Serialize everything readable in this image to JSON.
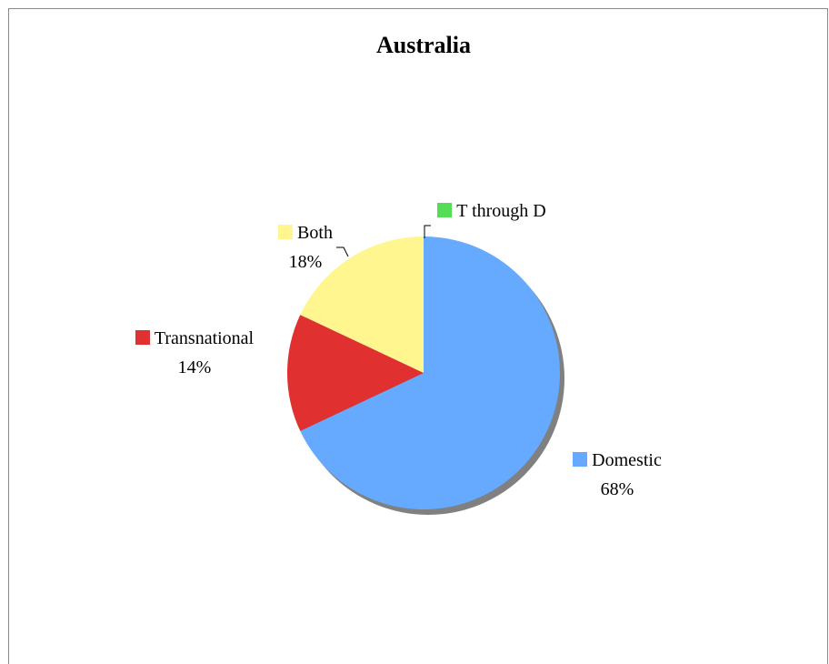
{
  "chart_data": {
    "type": "pie",
    "title": "Australia",
    "categories": [
      "Domestic",
      "Transnational",
      "Both",
      "T through D"
    ],
    "values": [
      68,
      14,
      18,
      0
    ],
    "value_labels": [
      "68%",
      "14%",
      "18%",
      null
    ],
    "colors": [
      "#66aaff",
      "#e03030",
      "#fff68f",
      "#55dd55"
    ]
  }
}
